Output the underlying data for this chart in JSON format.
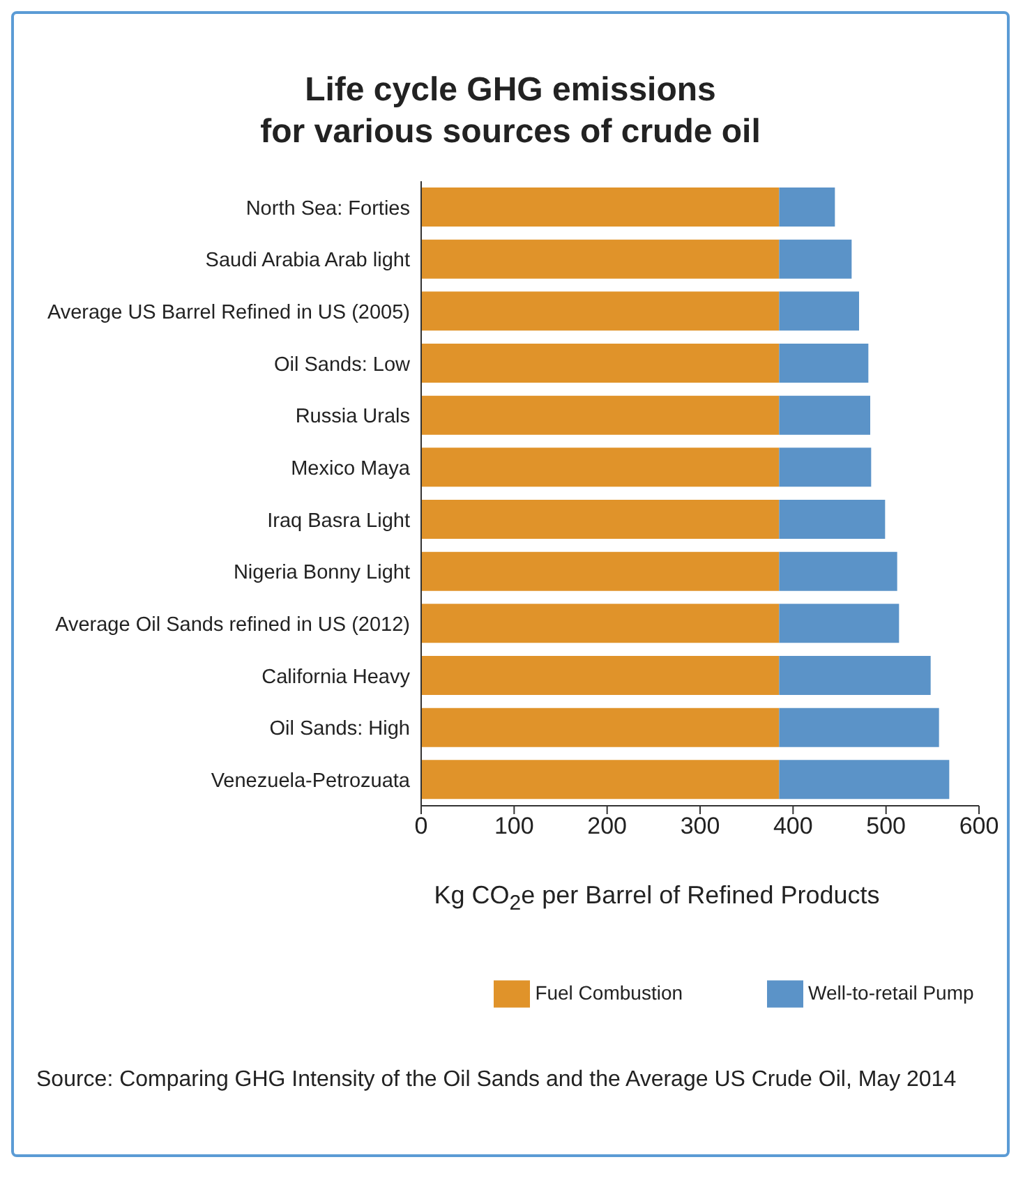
{
  "chart_data": {
    "type": "bar",
    "orientation": "horizontal",
    "stacked": true,
    "title": "Life cycle GHG emissions\nfor various sources of crude oil",
    "xlabel": "Kg CO$_{2}$e per Barrel of Refined Products",
    "categories": [
      "North Sea: Forties",
      "Saudi Arabia Arab light",
      "Average US Barrel Refined in US (2005)",
      "Oil Sands: Low",
      "Russia Urals",
      "Mexico Maya",
      "Iraq Basra Light",
      "Nigeria Bonny Light",
      "Average Oil Sands refined in US (2012)",
      "California Heavy",
      "Oil Sands: High",
      "Venezuela-Petrozuata"
    ],
    "series": [
      {
        "name": "Fuel Combustion",
        "color": "#e0932a",
        "values": [
          385,
          385,
          385,
          385,
          385,
          385,
          385,
          385,
          385,
          385,
          385,
          385
        ]
      },
      {
        "name": "Well-to-retail Pump",
        "color": "#5b93c8",
        "values": [
          60,
          78,
          86,
          96,
          98,
          99,
          114,
          127,
          129,
          163,
          172,
          183
        ]
      }
    ],
    "xlim": [
      0,
      600
    ],
    "xticks": [
      0,
      100,
      200,
      300,
      400,
      500,
      600
    ],
    "grid": false,
    "legend": "bottom",
    "annotations": [
      "Source: Comparing GHG Intensity of the Oil Sands and the Average US Crude Oil, May 2014"
    ]
  }
}
